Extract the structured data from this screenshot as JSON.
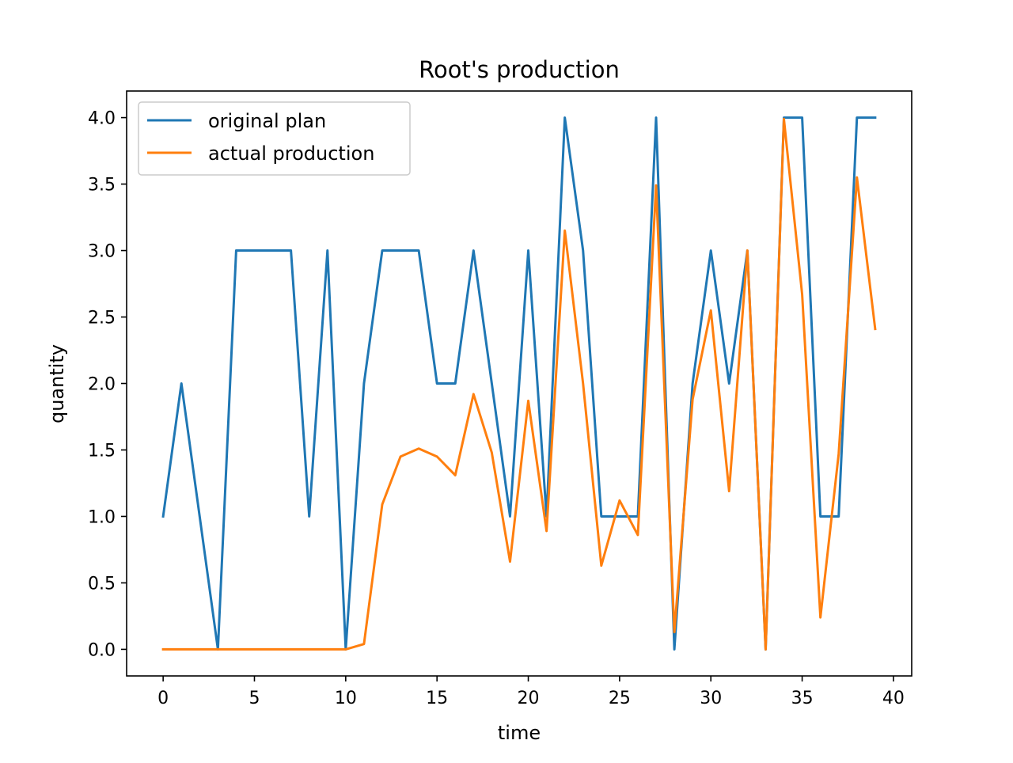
{
  "chart_data": {
    "type": "line",
    "title": "Root's production",
    "xlabel": "time",
    "ylabel": "quantity",
    "xlim": [
      -2,
      41
    ],
    "ylim": [
      -0.2,
      4.2
    ],
    "xticks": [
      0,
      5,
      10,
      15,
      20,
      25,
      30,
      35,
      40
    ],
    "xtick_labels": [
      "0",
      "5",
      "10",
      "15",
      "20",
      "25",
      "30",
      "35",
      "40"
    ],
    "yticks": [
      0.0,
      0.5,
      1.0,
      1.5,
      2.0,
      2.5,
      3.0,
      3.5,
      4.0
    ],
    "ytick_labels": [
      "0.0",
      "0.5",
      "1.0",
      "1.5",
      "2.0",
      "2.5",
      "3.0",
      "3.5",
      "4.0"
    ],
    "grid": false,
    "legend_position": "upper left",
    "x": [
      0,
      1,
      2,
      3,
      4,
      5,
      6,
      7,
      8,
      9,
      10,
      11,
      12,
      13,
      14,
      15,
      16,
      17,
      18,
      19,
      20,
      21,
      22,
      23,
      24,
      25,
      26,
      27,
      28,
      29,
      30,
      31,
      32,
      33,
      34,
      35,
      36,
      37,
      38,
      39
    ],
    "series": [
      {
        "name": "original plan",
        "color": "#1f77b4",
        "values": [
          1,
          2,
          1,
          0,
          3,
          3,
          3,
          3,
          1,
          3,
          0,
          2,
          3,
          3,
          3,
          2,
          2,
          3,
          2,
          1,
          3,
          1,
          4,
          3,
          1,
          1,
          1,
          4,
          0,
          2,
          3,
          2,
          3,
          0,
          4,
          4,
          1,
          1,
          4,
          4
        ]
      },
      {
        "name": "actual production",
        "color": "#ff7f0e",
        "values": [
          0,
          0,
          0,
          0,
          0,
          0,
          0,
          0,
          0,
          0,
          0,
          0.04,
          1.09,
          1.45,
          1.51,
          1.45,
          1.31,
          1.92,
          1.48,
          0.66,
          1.87,
          0.89,
          3.15,
          2.0,
          0.63,
          1.12,
          0.86,
          3.49,
          0.13,
          1.88,
          2.55,
          1.19,
          3.0,
          0.0,
          3.99,
          2.67,
          0.24,
          1.47,
          3.55,
          2.41
        ]
      }
    ]
  }
}
